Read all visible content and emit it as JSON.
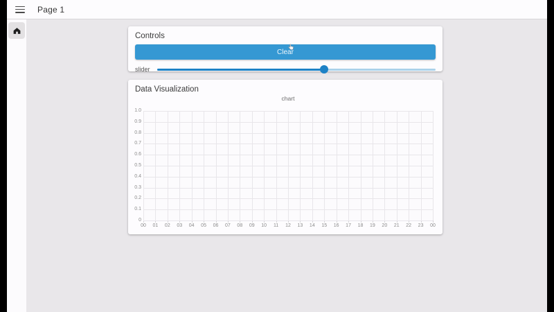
{
  "topbar": {
    "title": "Page 1"
  },
  "sidebar": {
    "items": [
      {
        "id": "home",
        "icon": "home-icon"
      }
    ]
  },
  "controls_card": {
    "title": "Controls",
    "clear_button_label": "Clear",
    "slider": {
      "label": "slider",
      "value_percent": 60
    }
  },
  "viz_card": {
    "title": "Data Visualization"
  },
  "chart_data": {
    "type": "line",
    "title": "chart",
    "series": [],
    "x_tick_labels": [
      "00",
      "01",
      "02",
      "03",
      "04",
      "05",
      "06",
      "07",
      "08",
      "09",
      "10",
      "11",
      "12",
      "13",
      "14",
      "15",
      "16",
      "17",
      "18",
      "19",
      "20",
      "21",
      "22",
      "23",
      "00"
    ],
    "y_tick_labels": [
      "1.0",
      "0.9",
      "0.8",
      "0.7",
      "0.6",
      "0.5",
      "0.4",
      "0.3",
      "0.2",
      "0.1",
      "0"
    ],
    "ylim": [
      0,
      1.0
    ],
    "grid": true,
    "legend": "none"
  },
  "colors": {
    "bezel": "#000000",
    "content_bg": "#e9e7ea",
    "card_bg": "#fdfcfe",
    "button_blue": "#3598d3",
    "slider_fill": "#1e82c6",
    "slider_rail": "#abd2ea",
    "gridline": "#e8e6ea",
    "tick_text": "#8b8b8b"
  }
}
